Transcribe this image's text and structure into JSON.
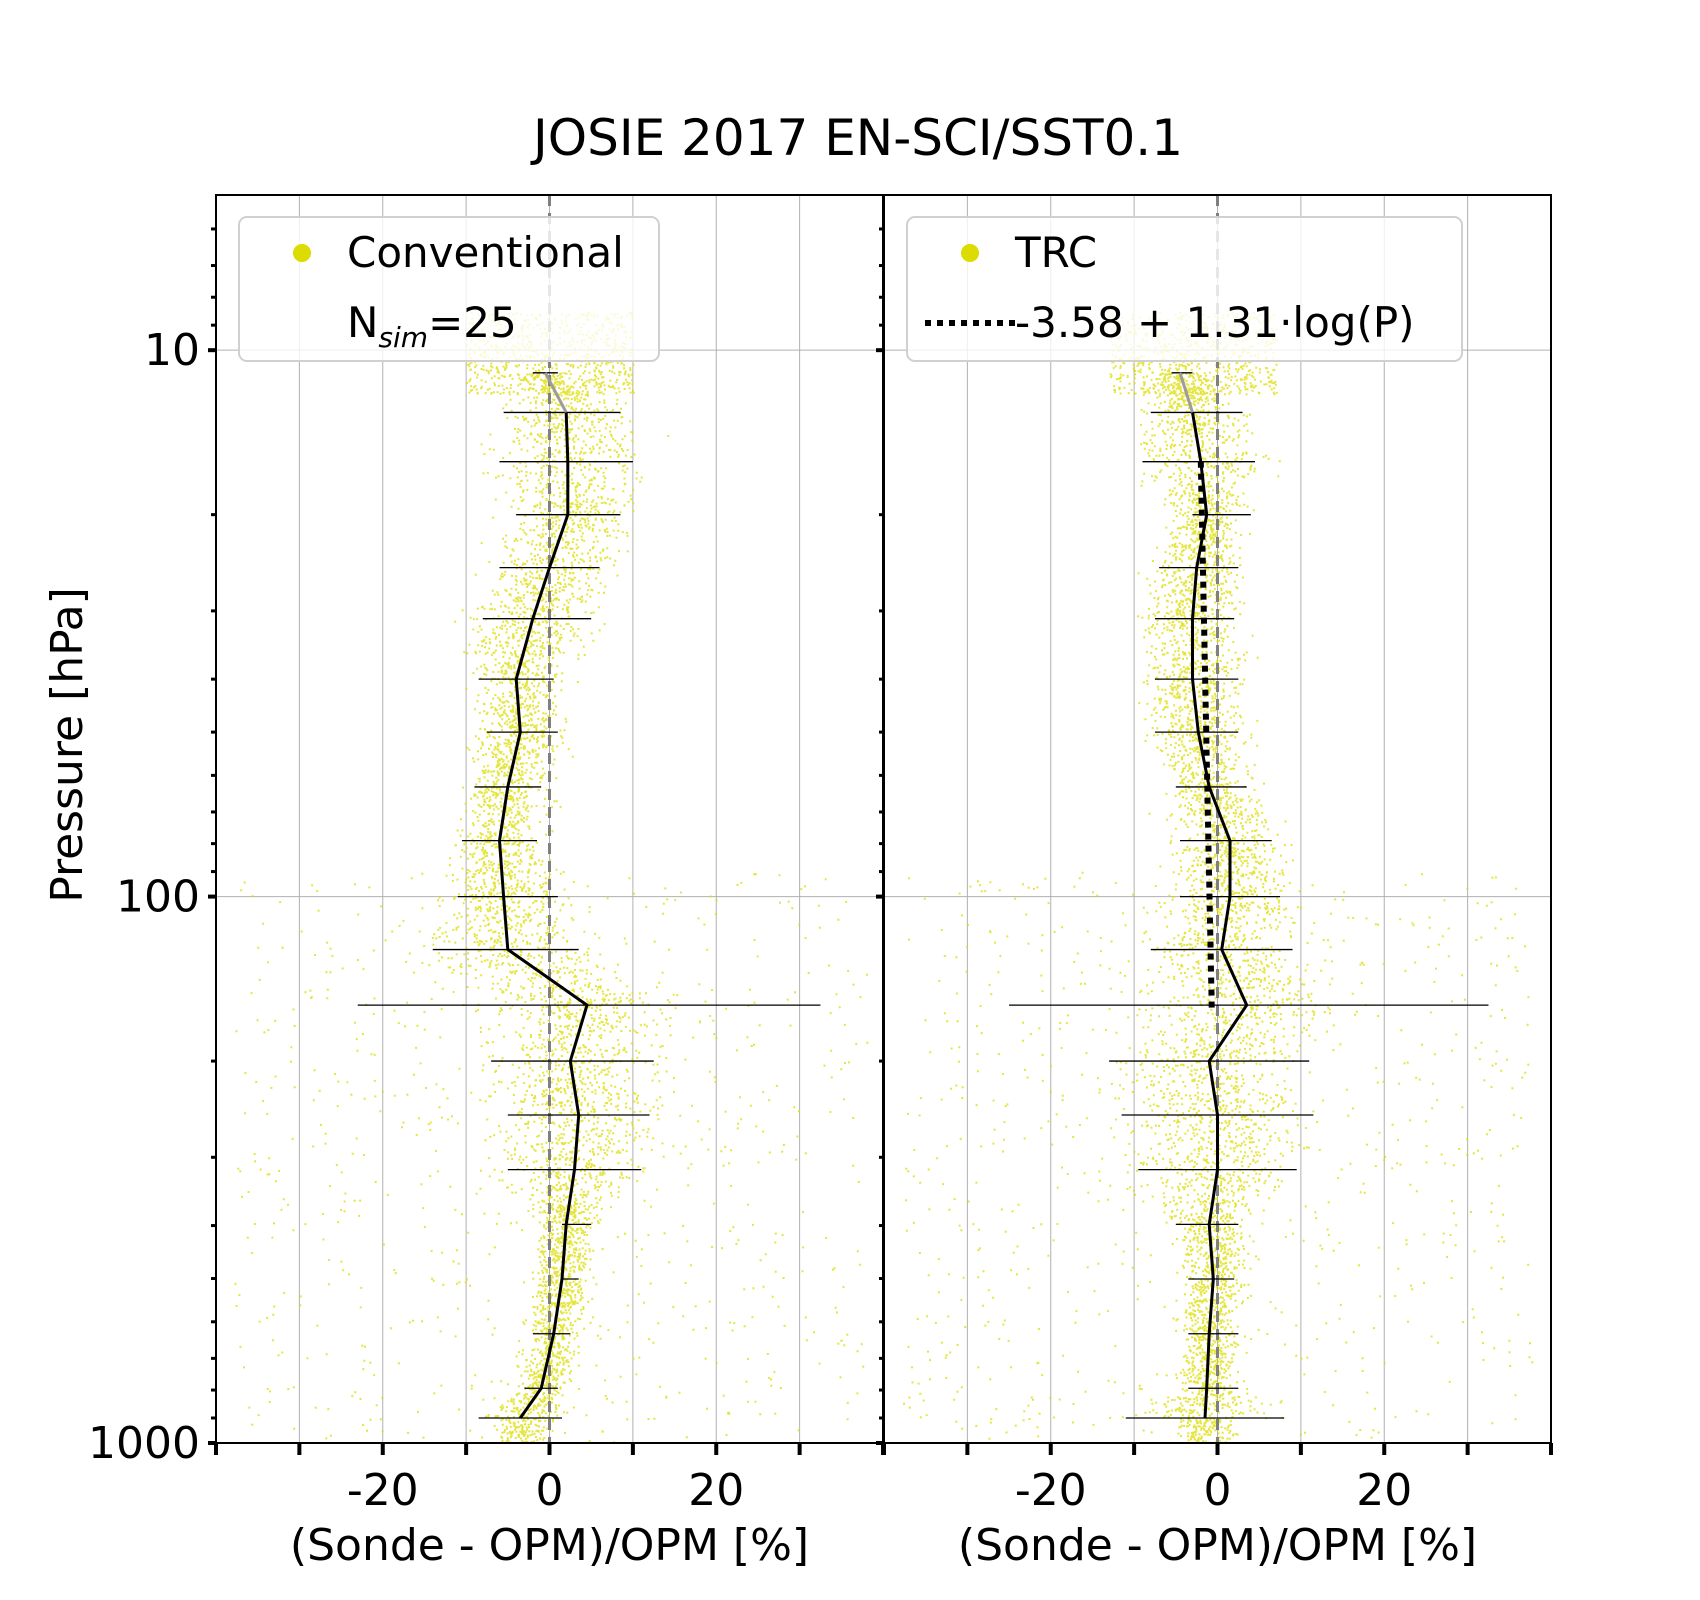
{
  "chart_data": {
    "title": "JOSIE 2017 EN-SCI/SST0.1",
    "type": "scatter",
    "y_scale": "log",
    "y_reversed": true,
    "ylabel": "Pressure [hPa]",
    "ylim": [
      1000,
      5.2
    ],
    "yticks": [
      {
        "value": 10,
        "label": "10"
      },
      {
        "value": 100,
        "label": "100"
      },
      {
        "value": 1000,
        "label": "1000"
      }
    ],
    "xlim": [
      -40,
      40
    ],
    "xticks": [
      {
        "value": -20,
        "label": "-20"
      },
      {
        "value": 0,
        "label": "0"
      },
      {
        "value": 20,
        "label": "20"
      }
    ],
    "grid": true,
    "scatter_color": "#dcdc00",
    "panels": [
      {
        "name": "conventional",
        "xlabel": "(Sonde - OPM)/OPM [%]",
        "legend_position": "top-left",
        "legend": {
          "scatter_label": "Conventional",
          "nsim_prefix": "N",
          "nsim_sub": "sim",
          "nsim_suffix": "=25"
        },
        "profile": {
          "pressure": [
            11,
            13,
            16,
            20,
            25,
            31,
            40,
            50,
            63,
            79,
            100,
            125,
            158,
            200,
            251,
            316,
            398,
            501,
            631,
            794,
            900
          ],
          "mean": [
            -0.5,
            2,
            2.2,
            2.2,
            0,
            -2,
            -4,
            -3.5,
            -5,
            -6,
            -5.5,
            -5,
            4.5,
            2.5,
            3.5,
            3,
            2,
            1.5,
            0.5,
            -1,
            -3.5
          ],
          "sd_low": [
            -2,
            -5.5,
            -6,
            -4,
            -6,
            -8,
            -8.5,
            -7.5,
            -9,
            -10.5,
            -11,
            -14,
            -23,
            -7,
            -5,
            -5,
            1.5,
            1.5,
            -2,
            -3,
            -8.5
          ],
          "sd_high": [
            1,
            8.5,
            10,
            8.5,
            6,
            5,
            0.5,
            1,
            -1,
            -1.5,
            1,
            3.5,
            32.5,
            12.5,
            12,
            11,
            5,
            3.5,
            2.5,
            1,
            1.5
          ]
        }
      },
      {
        "name": "trc",
        "xlabel": "(Sonde - OPM)/OPM [%]",
        "legend_position": "top-left",
        "legend": {
          "scatter_label": "TRC",
          "fit_label": "-3.58 + 1.31·log(P)"
        },
        "fit": {
          "a": -3.58,
          "b": 1.31
        },
        "profile": {
          "pressure": [
            11,
            13,
            16,
            20,
            25,
            31,
            40,
            50,
            63,
            79,
            100,
            125,
            158,
            200,
            251,
            316,
            398,
            501,
            631,
            794,
            900
          ],
          "mean": [
            -4.5,
            -3,
            -2,
            -1.3,
            -2.5,
            -3,
            -3,
            -2.3,
            -1,
            1.5,
            1.5,
            0.5,
            3.5,
            -1,
            0,
            0,
            -1,
            -0.5,
            -1,
            -1.3,
            -1.5
          ],
          "sd_low": [
            -5.5,
            -8,
            -9,
            -3,
            -7,
            -7.5,
            -7.5,
            -7.5,
            -5,
            -4.5,
            -4.5,
            -8,
            -25,
            -13,
            -11.5,
            -9.5,
            -5,
            -3.5,
            -3.5,
            -3.5,
            -11
          ],
          "sd_high": [
            -3,
            3,
            4.5,
            4,
            2.5,
            2,
            2.5,
            2.5,
            3.5,
            6.5,
            7.5,
            9,
            32.5,
            11,
            11.5,
            9.5,
            2.5,
            2,
            2.5,
            2.5,
            8
          ]
        }
      }
    ]
  }
}
